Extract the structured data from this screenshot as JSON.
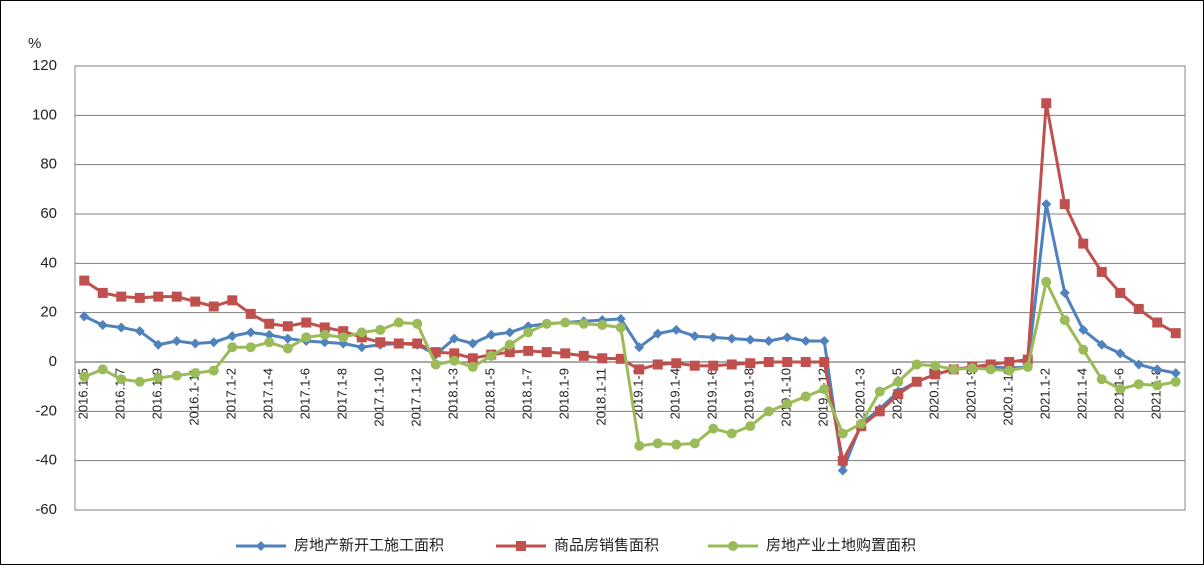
{
  "chart_data": {
    "type": "line",
    "y_label": "%",
    "categories": [
      "2016.1-5",
      null,
      "2016.1-7",
      null,
      "2016.1-9",
      null,
      "2016.1-11",
      null,
      "2017.1-2",
      null,
      "2017.1-4",
      null,
      "2017.1-6",
      null,
      "2017.1-8",
      null,
      "2017.1-10",
      null,
      "2017.1-12",
      null,
      "2018.1-3",
      null,
      "2018.1-5",
      null,
      "2018.1-7",
      null,
      "2018.1-9",
      null,
      "2018.1-11",
      null,
      "2019.1-2",
      null,
      "2019.1-4",
      null,
      "2019.1-6",
      null,
      "2019.1-8",
      null,
      "2019.1-10",
      null,
      "2019.1-12",
      null,
      "2020.1-3",
      null,
      "2020.1-5",
      null,
      "2020.1-7",
      null,
      "2020.1-9",
      null,
      "2020.1-11",
      null,
      "2021.1-2",
      null,
      "2021.1-4",
      null,
      "2021.1-6",
      null,
      "2021.1-8",
      null
    ],
    "series": [
      {
        "name": "房地产新开工施工面积",
        "color": "#4f81bd",
        "marker": "diamond",
        "values": [
          18.5,
          15,
          14,
          12.5,
          7,
          8.5,
          7.5,
          8,
          10.5,
          12,
          11,
          9.5,
          8.5,
          8,
          7.5,
          6,
          7,
          7.5,
          7,
          3,
          9.5,
          7.5,
          11,
          12,
          14.5,
          15.5,
          16,
          16.5,
          17,
          17.5,
          6,
          11.5,
          13,
          10.5,
          10,
          9.5,
          9,
          8.5,
          10,
          8.5,
          8.5,
          -44,
          -25,
          -19,
          -12,
          -8,
          -5,
          -3,
          -2,
          -2,
          -2.5,
          -2,
          64,
          28,
          13,
          7,
          3.5,
          -1,
          -3,
          -4.5
        ]
      },
      {
        "name": "商品房销售面积",
        "color": "#c0504d",
        "marker": "square",
        "values": [
          33,
          28,
          26.5,
          26,
          26.5,
          26.5,
          24.5,
          22.5,
          25,
          19.5,
          15.5,
          14.5,
          16,
          14,
          12.5,
          10,
          8,
          7.5,
          7.5,
          4,
          3.5,
          1.5,
          3,
          4,
          4.5,
          4,
          3.5,
          2.5,
          1.5,
          1.3,
          -3,
          -1,
          -0.5,
          -1.5,
          -1.5,
          -1,
          -0.5,
          0,
          0,
          0,
          0,
          -40,
          -26,
          -20,
          -13,
          -8,
          -5,
          -3,
          -2,
          -1,
          0,
          1,
          104.9,
          64,
          48,
          36.5,
          28,
          21.5,
          16,
          11.7
        ]
      },
      {
        "name": "房地产业土地购置面积",
        "color": "#9bbb59",
        "marker": "circle",
        "values": [
          -6,
          -3,
          -7,
          -8,
          -6.5,
          -5.5,
          -4.5,
          -3.5,
          6,
          6,
          8,
          5.5,
          10,
          11,
          10,
          12,
          13,
          16,
          15.5,
          -1,
          0.5,
          -2,
          2.5,
          7,
          12,
          15.5,
          16,
          15.5,
          15,
          14,
          -34,
          -33,
          -33.5,
          -33,
          -27,
          -29,
          -26,
          -20,
          -17,
          -14,
          -11,
          -29,
          -25,
          -12,
          -8,
          -1,
          -1.5,
          -3,
          -2.5,
          -3,
          -3.5,
          -2,
          32.5,
          17,
          5,
          -7,
          -11,
          -9,
          -9.5,
          -8
        ]
      }
    ],
    "ylim": [
      -60,
      120
    ],
    "yticks": [
      -60,
      -40,
      -20,
      0,
      20,
      40,
      60,
      80,
      100,
      120
    ],
    "grid": true,
    "legend": "bottom"
  }
}
